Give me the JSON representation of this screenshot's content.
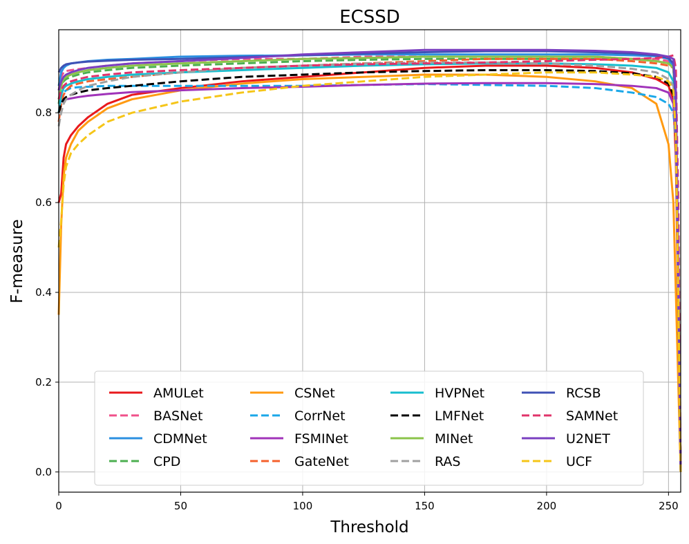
{
  "chart_data": {
    "type": "line",
    "title": "ECSSD",
    "xlabel": "Threshold",
    "ylabel": "F-measure",
    "xlim": [
      0,
      255
    ],
    "ylim": [
      -0.045,
      0.985
    ],
    "xticks": [
      0,
      50,
      100,
      150,
      200,
      250
    ],
    "yticks": [
      0.0,
      0.2,
      0.4,
      0.6,
      0.8
    ],
    "ytick_labels": [
      "0.0",
      "0.2",
      "0.4",
      "0.6",
      "0.8"
    ],
    "grid": true,
    "legend": {
      "position": "lower-center",
      "columns": 4
    },
    "x": [
      0,
      1,
      2,
      3,
      5,
      8,
      12,
      20,
      30,
      50,
      75,
      100,
      125,
      150,
      175,
      200,
      220,
      235,
      245,
      250,
      252,
      253,
      254,
      255
    ],
    "series": [
      {
        "name": "AMULet",
        "color": "#e8191c",
        "dash": false,
        "values": [
          0.6,
          0.62,
          0.7,
          0.73,
          0.75,
          0.77,
          0.79,
          0.82,
          0.84,
          0.855,
          0.87,
          0.88,
          0.89,
          0.9,
          0.905,
          0.905,
          0.9,
          0.89,
          0.875,
          0.86,
          0.83,
          0.7,
          0.35,
          0.0
        ]
      },
      {
        "name": "BASNet",
        "color": "#f0508a",
        "dash": true,
        "values": [
          0.85,
          0.88,
          0.89,
          0.893,
          0.895,
          0.897,
          0.9,
          0.905,
          0.91,
          0.915,
          0.92,
          0.92,
          0.925,
          0.925,
          0.925,
          0.925,
          0.925,
          0.92,
          0.92,
          0.915,
          0.9,
          0.8,
          0.45,
          0.0
        ]
      },
      {
        "name": "CDMNet",
        "color": "#2b8fe0",
        "dash": false,
        "values": [
          0.86,
          0.89,
          0.9,
          0.905,
          0.91,
          0.912,
          0.915,
          0.918,
          0.92,
          0.925,
          0.927,
          0.928,
          0.93,
          0.93,
          0.93,
          0.93,
          0.93,
          0.928,
          0.926,
          0.92,
          0.9,
          0.8,
          0.4,
          0.0
        ]
      },
      {
        "name": "CPD",
        "color": "#4caf50",
        "dash": true,
        "values": [
          0.82,
          0.86,
          0.87,
          0.875,
          0.88,
          0.885,
          0.89,
          0.895,
          0.9,
          0.905,
          0.91,
          0.915,
          0.918,
          0.92,
          0.92,
          0.92,
          0.92,
          0.92,
          0.915,
          0.91,
          0.9,
          0.82,
          0.45,
          0.0
        ]
      },
      {
        "name": "CSNet",
        "color": "#ff9a12",
        "dash": false,
        "values": [
          0.35,
          0.55,
          0.66,
          0.7,
          0.73,
          0.76,
          0.78,
          0.81,
          0.83,
          0.85,
          0.865,
          0.875,
          0.88,
          0.885,
          0.885,
          0.88,
          0.87,
          0.855,
          0.82,
          0.73,
          0.6,
          0.4,
          0.2,
          0.0
        ]
      },
      {
        "name": "CorrNet",
        "color": "#1aa7e8",
        "dash": true,
        "values": [
          0.8,
          0.83,
          0.845,
          0.85,
          0.855,
          0.857,
          0.858,
          0.86,
          0.86,
          0.86,
          0.86,
          0.86,
          0.862,
          0.864,
          0.862,
          0.86,
          0.855,
          0.845,
          0.835,
          0.82,
          0.8,
          0.74,
          0.4,
          0.0
        ]
      },
      {
        "name": "FSMINet",
        "color": "#a033b9",
        "dash": false,
        "values": [
          0.82,
          0.825,
          0.828,
          0.83,
          0.832,
          0.835,
          0.838,
          0.842,
          0.846,
          0.85,
          0.855,
          0.858,
          0.862,
          0.865,
          0.866,
          0.866,
          0.864,
          0.86,
          0.855,
          0.845,
          0.82,
          0.75,
          0.4,
          0.0
        ]
      },
      {
        "name": "GateNet",
        "color": "#f4602c",
        "dash": true,
        "values": [
          0.78,
          0.82,
          0.84,
          0.85,
          0.86,
          0.865,
          0.87,
          0.875,
          0.88,
          0.89,
          0.9,
          0.905,
          0.91,
          0.915,
          0.92,
          0.92,
          0.92,
          0.915,
          0.91,
          0.905,
          0.9,
          0.82,
          0.45,
          0.0
        ]
      },
      {
        "name": "HVPNet",
        "color": "#17becf",
        "dash": false,
        "values": [
          0.8,
          0.84,
          0.855,
          0.86,
          0.865,
          0.87,
          0.875,
          0.88,
          0.885,
          0.89,
          0.895,
          0.9,
          0.905,
          0.908,
          0.91,
          0.91,
          0.908,
          0.905,
          0.9,
          0.89,
          0.87,
          0.78,
          0.42,
          0.0
        ]
      },
      {
        "name": "LMFNet",
        "color": "#000000",
        "dash": true,
        "values": [
          0.8,
          0.82,
          0.83,
          0.835,
          0.84,
          0.845,
          0.85,
          0.855,
          0.86,
          0.87,
          0.88,
          0.885,
          0.89,
          0.893,
          0.895,
          0.895,
          0.893,
          0.888,
          0.88,
          0.865,
          0.84,
          0.78,
          0.4,
          0.0
        ]
      },
      {
        "name": "MINet",
        "color": "#8bc34a",
        "dash": false,
        "values": [
          0.83,
          0.86,
          0.875,
          0.88,
          0.885,
          0.89,
          0.895,
          0.9,
          0.905,
          0.91,
          0.915,
          0.92,
          0.922,
          0.925,
          0.925,
          0.925,
          0.925,
          0.92,
          0.915,
          0.91,
          0.9,
          0.83,
          0.46,
          0.0
        ]
      },
      {
        "name": "RAS",
        "color": "#a0a0a0",
        "dash": true,
        "values": [
          0.77,
          0.8,
          0.82,
          0.83,
          0.84,
          0.85,
          0.86,
          0.87,
          0.88,
          0.89,
          0.9,
          0.905,
          0.91,
          0.912,
          0.912,
          0.91,
          0.905,
          0.898,
          0.89,
          0.875,
          0.86,
          0.78,
          0.4,
          0.0
        ]
      },
      {
        "name": "RCSB",
        "color": "#3f51b5",
        "dash": false,
        "values": [
          0.89,
          0.9,
          0.905,
          0.908,
          0.91,
          0.912,
          0.914,
          0.916,
          0.918,
          0.92,
          0.924,
          0.928,
          0.932,
          0.935,
          0.937,
          0.937,
          0.935,
          0.932,
          0.928,
          0.922,
          0.91,
          0.82,
          0.45,
          0.0
        ]
      },
      {
        "name": "SAMNet",
        "color": "#e0336a",
        "dash": true,
        "values": [
          0.83,
          0.85,
          0.86,
          0.865,
          0.87,
          0.875,
          0.88,
          0.885,
          0.89,
          0.895,
          0.9,
          0.905,
          0.908,
          0.91,
          0.912,
          0.915,
          0.918,
          0.92,
          0.922,
          0.925,
          0.928,
          0.9,
          0.6,
          0.0
        ]
      },
      {
        "name": "U2NET",
        "color": "#7a3fc0",
        "dash": false,
        "values": [
          0.85,
          0.87,
          0.88,
          0.885,
          0.89,
          0.895,
          0.9,
          0.905,
          0.91,
          0.915,
          0.922,
          0.93,
          0.935,
          0.94,
          0.94,
          0.94,
          0.938,
          0.935,
          0.93,
          0.925,
          0.92,
          0.85,
          0.45,
          0.0
        ]
      },
      {
        "name": "UCF",
        "color": "#f5c518",
        "dash": true,
        "values": [
          0.5,
          0.56,
          0.64,
          0.68,
          0.71,
          0.73,
          0.75,
          0.78,
          0.8,
          0.825,
          0.845,
          0.86,
          0.87,
          0.88,
          0.885,
          0.89,
          0.89,
          0.885,
          0.88,
          0.87,
          0.85,
          0.75,
          0.4,
          0.0
        ]
      }
    ]
  }
}
